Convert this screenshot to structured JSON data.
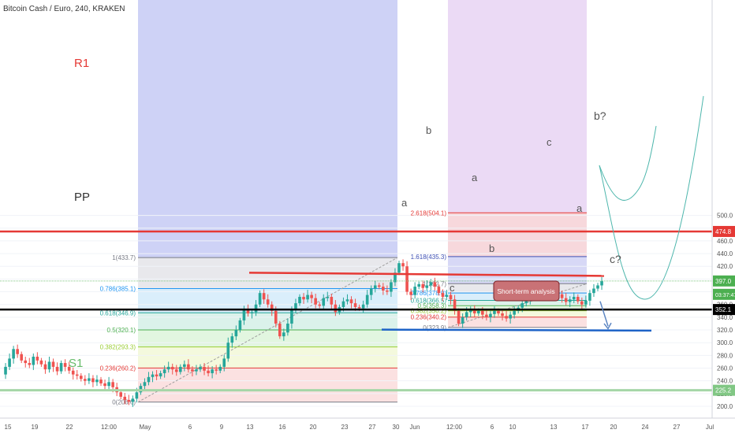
{
  "header": {
    "title": "Bitcoin Cash / Euro, 240, KRAKEN"
  },
  "chart_data": {
    "type": "candlestick",
    "symbol": "BCH/EUR",
    "timeframe": "240",
    "exchange": "KRAKEN",
    "y_axis": {
      "range": [
        193,
        530
      ],
      "ticks": [
        "200.0",
        "220.0",
        "240.0",
        "260.0",
        "280.0",
        "300.0",
        "320.0",
        "340.0",
        "360.0",
        "380.0",
        "400.0",
        "420.0",
        "440.0",
        "460.0",
        "480.0",
        "500.0"
      ]
    },
    "x_axis": {
      "ticks": [
        "15",
        "19",
        "22",
        "12:00",
        "May",
        "6",
        "9",
        "13",
        "16",
        "20",
        "23",
        "27",
        "30",
        "Jun",
        "12:00",
        "6",
        "10",
        "13",
        "17",
        "20",
        "24",
        "27",
        "Jul"
      ]
    },
    "price_badges": [
      {
        "value": "474.8",
        "color": "#e53935"
      },
      {
        "value": "397.0",
        "color": "#4caf50"
      },
      {
        "value": "03:37:47",
        "color": "#4caf50"
      },
      {
        "value": "352.1",
        "color": "#000000"
      },
      {
        "value": "225.2",
        "color": "#81c784"
      }
    ],
    "pivot_labels": [
      {
        "text": "R1",
        "price": 474.8,
        "color": "#e53935"
      },
      {
        "text": "PP",
        "price": 352.1,
        "color": "#333333"
      },
      {
        "text": "S1",
        "price": 225.2,
        "color": "#66bb6a"
      }
    ],
    "fib_retracement_1": {
      "levels": [
        {
          "label": "1(433.7)",
          "price": 433.7,
          "color": "#787b86"
        },
        {
          "label": "0.786(385.1)",
          "price": 385.1,
          "color": "#2196f3"
        },
        {
          "label": "0.618(346.9)",
          "price": 346.9,
          "color": "#26a69a"
        },
        {
          "label": "0.5(320.1)",
          "price": 320.1,
          "color": "#4caf50"
        },
        {
          "label": "0.382(293.3)",
          "price": 293.3,
          "color": "#9acd32"
        },
        {
          "label": "0.236(260.2)",
          "price": 260.2,
          "color": "#e53935"
        },
        {
          "label": "0(206.6)",
          "price": 206.6,
          "color": "#787b86"
        }
      ]
    },
    "fib_retracement_2": {
      "levels": [
        {
          "label": "2.618(504.1)",
          "price": 504.1,
          "color": "#e53935"
        },
        {
          "label": "1.618(435.3)",
          "price": 435.3,
          "color": "#3f51b5"
        },
        {
          "label": "1(392.7)",
          "price": 392.7,
          "color": "#787b86"
        },
        {
          "label": "0.786(378.0)",
          "price": 378.0,
          "color": "#2196f3"
        },
        {
          "label": "0.618(366.5)",
          "price": 366.5,
          "color": "#26a69a"
        },
        {
          "label": "0.5(358.3)",
          "price": 358.3,
          "color": "#4caf50"
        },
        {
          "label": "0.382(350.2)",
          "price": 350.2,
          "color": "#9acd32"
        },
        {
          "label": "0.236(340.2)",
          "price": 340.2,
          "color": "#e53935"
        },
        {
          "label": "0(323.9)",
          "price": 323.9,
          "color": "#787b86"
        }
      ]
    },
    "wave_labels": [
      "a",
      "b",
      "c",
      "a",
      "b",
      "c",
      "a",
      "b?",
      "c?"
    ],
    "callout": "Short-term analysis",
    "ohlc_path": [
      [
        0,
        250
      ],
      [
        2,
        262
      ],
      [
        4,
        275
      ],
      [
        6,
        290
      ],
      [
        8,
        282
      ],
      [
        10,
        272
      ],
      [
        12,
        268
      ],
      [
        14,
        265
      ],
      [
        16,
        278
      ],
      [
        18,
        272
      ],
      [
        20,
        266
      ],
      [
        22,
        258
      ],
      [
        24,
        270
      ],
      [
        26,
        262
      ],
      [
        28,
        255
      ],
      [
        30,
        268
      ],
      [
        32,
        262
      ],
      [
        34,
        256
      ],
      [
        36,
        250
      ],
      [
        38,
        248
      ],
      [
        40,
        243
      ],
      [
        42,
        240
      ],
      [
        44,
        244
      ],
      [
        46,
        238
      ],
      [
        48,
        242
      ],
      [
        50,
        236
      ],
      [
        52,
        232
      ],
      [
        54,
        238
      ],
      [
        56,
        230
      ],
      [
        58,
        222
      ],
      [
        60,
        215
      ],
      [
        62,
        210
      ],
      [
        64,
        207
      ],
      [
        66,
        212
      ],
      [
        68,
        222
      ],
      [
        70,
        232
      ],
      [
        72,
        238
      ],
      [
        74,
        246
      ],
      [
        76,
        250
      ],
      [
        78,
        247
      ],
      [
        80,
        252
      ],
      [
        82,
        258
      ],
      [
        84,
        262
      ],
      [
        86,
        258
      ],
      [
        88,
        254
      ],
      [
        90,
        262
      ],
      [
        92,
        266
      ],
      [
        94,
        258
      ],
      [
        96,
        255
      ],
      [
        98,
        258
      ],
      [
        100,
        262
      ],
      [
        102,
        256
      ],
      [
        104,
        252
      ],
      [
        106,
        258
      ],
      [
        108,
        256
      ],
      [
        110,
        262
      ],
      [
        112,
        275
      ],
      [
        114,
        300
      ],
      [
        116,
        310
      ],
      [
        118,
        320
      ],
      [
        120,
        335
      ],
      [
        122,
        352
      ],
      [
        124,
        346
      ],
      [
        126,
        348
      ],
      [
        128,
        360
      ],
      [
        130,
        378
      ],
      [
        132,
        368
      ],
      [
        134,
        360
      ],
      [
        136,
        350
      ],
      [
        138,
        330
      ],
      [
        140,
        310
      ],
      [
        142,
        316
      ],
      [
        144,
        330
      ],
      [
        146,
        352
      ],
      [
        148,
        362
      ],
      [
        150,
        372
      ],
      [
        152,
        368
      ],
      [
        154,
        375
      ],
      [
        156,
        370
      ],
      [
        158,
        360
      ],
      [
        160,
        358
      ],
      [
        162,
        370
      ],
      [
        164,
        372
      ],
      [
        166,
        360
      ],
      [
        168,
        348
      ],
      [
        170,
        356
      ],
      [
        172,
        365
      ],
      [
        174,
        368
      ],
      [
        176,
        362
      ],
      [
        178,
        356
      ],
      [
        180,
        354
      ],
      [
        182,
        360
      ],
      [
        184,
        375
      ],
      [
        186,
        385
      ],
      [
        188,
        390
      ],
      [
        190,
        388
      ],
      [
        192,
        382
      ],
      [
        194,
        380
      ],
      [
        196,
        395
      ],
      [
        198,
        410
      ],
      [
        200,
        425
      ],
      [
        202,
        420
      ],
      [
        204,
        380
      ],
      [
        206,
        375
      ],
      [
        208,
        388
      ],
      [
        210,
        392
      ],
      [
        212,
        386
      ],
      [
        214,
        390
      ],
      [
        216,
        395
      ],
      [
        218,
        388
      ],
      [
        220,
        378
      ],
      [
        222,
        372
      ],
      [
        224,
        375
      ],
      [
        226,
        368
      ],
      [
        228,
        350
      ],
      [
        230,
        330
      ],
      [
        232,
        340
      ],
      [
        234,
        348
      ],
      [
        236,
        352
      ],
      [
        238,
        346
      ],
      [
        240,
        350
      ],
      [
        242,
        344
      ],
      [
        244,
        340
      ],
      [
        246,
        345
      ],
      [
        248,
        350
      ],
      [
        250,
        346
      ],
      [
        252,
        342
      ],
      [
        254,
        338
      ],
      [
        256,
        344
      ],
      [
        258,
        350
      ],
      [
        260,
        355
      ],
      [
        262,
        362
      ],
      [
        264,
        368
      ],
      [
        266,
        372
      ],
      [
        268,
        375
      ],
      [
        270,
        380
      ],
      [
        272,
        385
      ],
      [
        274,
        382
      ],
      [
        276,
        376
      ],
      [
        278,
        380
      ],
      [
        280,
        376
      ],
      [
        282,
        370
      ],
      [
        284,
        364
      ],
      [
        286,
        368
      ],
      [
        288,
        372
      ],
      [
        290,
        365
      ],
      [
        292,
        360
      ],
      [
        294,
        366
      ],
      [
        296,
        378
      ],
      [
        298,
        385
      ],
      [
        300,
        390
      ],
      [
        302,
        397
      ]
    ],
    "projections": [
      "b?",
      "c?"
    ]
  }
}
